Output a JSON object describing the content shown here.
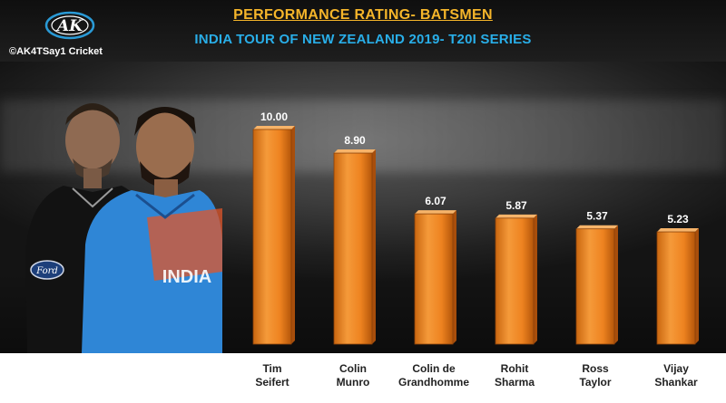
{
  "header": {
    "title": "PERFORMANCE RATING- BATSMEN",
    "subtitle": "INDIA TOUR OF NEW ZEALAND 2019- T20I SERIES"
  },
  "branding": {
    "logo_text": "AK",
    "credit": "©AK4TSay1 Cricket"
  },
  "colors": {
    "bar": "#f08a24",
    "bar_dark": "#a84e0b",
    "title": "#f5b52a",
    "subtitle": "#29aee8"
  },
  "chart_data": {
    "type": "bar",
    "title": "PERFORMANCE RATING- BATSMEN",
    "subtitle": "INDIA TOUR OF NEW ZEALAND 2019- T20I SERIES",
    "categories": [
      [
        "Tim",
        "Seifert"
      ],
      [
        "Colin",
        "Munro"
      ],
      [
        "Colin de",
        "Grandhomme"
      ],
      [
        "Rohit",
        "Sharma"
      ],
      [
        "Ross",
        "Taylor"
      ],
      [
        "Vijay",
        "Shankar"
      ]
    ],
    "values": [
      10.0,
      8.9,
      6.07,
      5.87,
      5.37,
      5.23
    ],
    "value_labels": [
      "10.00",
      "8.90",
      "6.07",
      "5.87",
      "5.37",
      "5.23"
    ],
    "xlabel": "",
    "ylabel": "",
    "ylim": [
      0,
      10.8
    ],
    "grid": false,
    "legend": "none",
    "data_labels": "above-bars"
  }
}
